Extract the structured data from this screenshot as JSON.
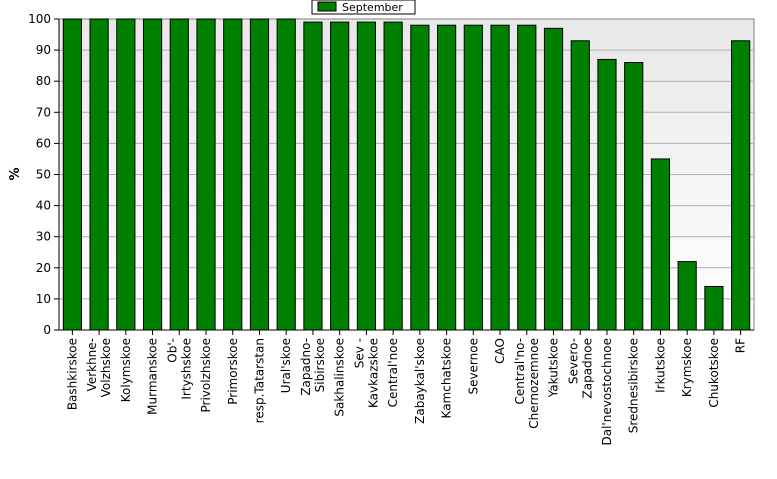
{
  "chart_data": {
    "type": "bar",
    "title": "",
    "xlabel": "",
    "ylabel": "%",
    "ylim": [
      0,
      100
    ],
    "yticks": [
      0,
      10,
      20,
      30,
      40,
      50,
      60,
      70,
      80,
      90,
      100
    ],
    "grid": true,
    "legend_position": "top-center",
    "categories": [
      [
        "Bashkirskoe"
      ],
      [
        "Verkhne-",
        "Volzhskoe"
      ],
      [
        "Kolymskoe"
      ],
      [
        "Murmanskoe"
      ],
      [
        "Ob'-",
        "Irtyshskoe"
      ],
      [
        "Privolzhskoe"
      ],
      [
        "Primorskoe"
      ],
      [
        "resp.Tatarstan"
      ],
      [
        "Ural'skoe"
      ],
      [
        "Zapadno-",
        "Sibirskoe"
      ],
      [
        "Sakhalinskoe"
      ],
      [
        "Sev -",
        "Kavkazskoe"
      ],
      [
        "Central'noe"
      ],
      [
        "Zabaykal'skoe"
      ],
      [
        "Kamchatskoe"
      ],
      [
        "Severnoe"
      ],
      [
        "CAO"
      ],
      [
        "Central'no-",
        "Chernozemnoe"
      ],
      [
        "Yakutskoe"
      ],
      [
        "Severo-",
        "Zapadnoe"
      ],
      [
        "Dal'nevostochnoe"
      ],
      [
        "Srednesibirskoe"
      ],
      [
        "Irkutskoe"
      ],
      [
        "Krymskoe"
      ],
      [
        "Chukotskoe"
      ],
      [
        "RF"
      ]
    ],
    "series": [
      {
        "name": "September",
        "color": "#008000",
        "values": [
          100,
          100,
          100,
          100,
          100,
          100,
          100,
          100,
          100,
          99,
          99,
          99,
          99,
          98,
          98,
          98,
          98,
          98,
          97,
          93,
          87,
          86,
          55,
          22,
          14,
          93
        ]
      }
    ]
  }
}
